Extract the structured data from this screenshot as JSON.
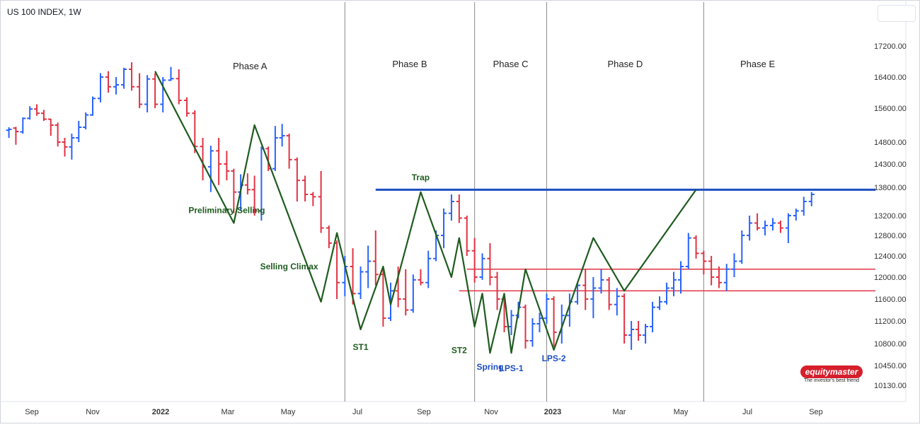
{
  "header": {
    "title": "US 100 INDEX, 1W"
  },
  "logo": {
    "brand": "equitymaster",
    "tagline": "The investor's best friend"
  },
  "colors": {
    "up": "#2962ff",
    "down": "#e03344",
    "wyckoff": "#1e5c1e",
    "trap_line": "#1e4fbf",
    "support_line": "#e03344",
    "phase_divider": "#8a8a8a",
    "label_green": "#1e5c1e",
    "label_blue": "#1e4fbf"
  },
  "chart_data": {
    "type": "ohlc",
    "title": "US 100 INDEX, 1W",
    "y_ticks": [
      17200,
      16400,
      15600,
      14800,
      14300,
      13800,
      13200,
      12800,
      12400,
      12000,
      11600,
      11200,
      10800,
      10450,
      10130
    ],
    "y_tick_labels": [
      "17200.00",
      "16400.00",
      "15600.00",
      "14800.00",
      "14300.00",
      "13800.00",
      "13200.00",
      "12800.00",
      "12400.00",
      "12000.00",
      "11600.00",
      "11200.00",
      "10800.00",
      "10450.00",
      "10130.00"
    ],
    "x_ticks": [
      {
        "label": "Sep",
        "date": "2021-09-01"
      },
      {
        "label": "Nov",
        "date": "2021-11-01"
      },
      {
        "label": "2022",
        "date": "2022-01-01",
        "bold": true
      },
      {
        "label": "Mar",
        "date": "2022-03-01"
      },
      {
        "label": "May",
        "date": "2022-05-01"
      },
      {
        "label": "Jul",
        "date": "2022-07-01"
      },
      {
        "label": "Sep",
        "date": "2022-09-01"
      },
      {
        "label": "Nov",
        "date": "2022-11-01"
      },
      {
        "label": "2023",
        "date": "2023-01-01",
        "bold": true
      },
      {
        "label": "Mar",
        "date": "2023-03-01"
      },
      {
        "label": "May",
        "date": "2023-05-01"
      },
      {
        "label": "Jul",
        "date": "2023-07-01"
      },
      {
        "label": "Sep",
        "date": "2023-09-01"
      }
    ],
    "bars": [
      {
        "date": "2021-08-09",
        "o": 15080,
        "h": 15150,
        "l": 14900,
        "c": 15100
      },
      {
        "date": "2021-08-16",
        "o": 15130,
        "h": 15160,
        "l": 14740,
        "c": 15050
      },
      {
        "date": "2021-08-23",
        "o": 15040,
        "h": 15380,
        "l": 15000,
        "c": 15360
      },
      {
        "date": "2021-08-30",
        "o": 15360,
        "h": 15650,
        "l": 15330,
        "c": 15580
      },
      {
        "date": "2021-09-06",
        "o": 15580,
        "h": 15700,
        "l": 15420,
        "c": 15480
      },
      {
        "date": "2021-09-13",
        "o": 15480,
        "h": 15560,
        "l": 15300,
        "c": 15340
      },
      {
        "date": "2021-09-20",
        "o": 15340,
        "h": 15350,
        "l": 14950,
        "c": 15200
      },
      {
        "date": "2021-09-27",
        "o": 15200,
        "h": 15260,
        "l": 14700,
        "c": 14800
      },
      {
        "date": "2021-10-04",
        "o": 14800,
        "h": 14900,
        "l": 14470,
        "c": 14690
      },
      {
        "date": "2021-10-11",
        "o": 14690,
        "h": 15000,
        "l": 14400,
        "c": 14900
      },
      {
        "date": "2021-10-18",
        "o": 14900,
        "h": 15300,
        "l": 14800,
        "c": 15150
      },
      {
        "date": "2021-10-25",
        "o": 15150,
        "h": 15500,
        "l": 15100,
        "c": 15440
      },
      {
        "date": "2021-11-01",
        "o": 15440,
        "h": 15900,
        "l": 15420,
        "c": 15850
      },
      {
        "date": "2021-11-08",
        "o": 15850,
        "h": 16500,
        "l": 15750,
        "c": 16400
      },
      {
        "date": "2021-11-15",
        "o": 16400,
        "h": 16550,
        "l": 16000,
        "c": 16150
      },
      {
        "date": "2021-11-22",
        "o": 16150,
        "h": 16400,
        "l": 15950,
        "c": 16200
      },
      {
        "date": "2021-11-29",
        "o": 16200,
        "h": 16640,
        "l": 16100,
        "c": 16600
      },
      {
        "date": "2021-12-06",
        "o": 16600,
        "h": 16780,
        "l": 16050,
        "c": 16150
      },
      {
        "date": "2021-12-13",
        "o": 16150,
        "h": 16500,
        "l": 15600,
        "c": 15700
      },
      {
        "date": "2021-12-20",
        "o": 15700,
        "h": 16450,
        "l": 15500,
        "c": 16350
      },
      {
        "date": "2021-12-27",
        "o": 16350,
        "h": 16500,
        "l": 15600,
        "c": 15700
      },
      {
        "date": "2022-01-03",
        "o": 15700,
        "h": 16400,
        "l": 15500,
        "c": 16320
      },
      {
        "date": "2022-01-10",
        "o": 16320,
        "h": 16660,
        "l": 16300,
        "c": 16360
      },
      {
        "date": "2022-01-17",
        "o": 16360,
        "h": 16600,
        "l": 15700,
        "c": 15800
      },
      {
        "date": "2022-01-24",
        "o": 15800,
        "h": 15880,
        "l": 15400,
        "c": 15480
      },
      {
        "date": "2022-01-31",
        "o": 15480,
        "h": 15550,
        "l": 14550,
        "c": 14700
      },
      {
        "date": "2022-02-07",
        "o": 14700,
        "h": 14900,
        "l": 13950,
        "c": 14240
      },
      {
        "date": "2022-02-14",
        "o": 14240,
        "h": 14720,
        "l": 13700,
        "c": 14600
      },
      {
        "date": "2022-02-21",
        "o": 14600,
        "h": 14900,
        "l": 13850,
        "c": 14300
      },
      {
        "date": "2022-02-28",
        "o": 14300,
        "h": 14600,
        "l": 13950,
        "c": 14150
      },
      {
        "date": "2022-03-07",
        "o": 14150,
        "h": 14200,
        "l": 13250,
        "c": 13700
      },
      {
        "date": "2022-03-14",
        "o": 13700,
        "h": 14080,
        "l": 13300,
        "c": 13850
      },
      {
        "date": "2022-03-21",
        "o": 13850,
        "h": 14100,
        "l": 13650,
        "c": 13750
      },
      {
        "date": "2022-03-28",
        "o": 13750,
        "h": 14050,
        "l": 13200,
        "c": 13300
      },
      {
        "date": "2022-04-04",
        "o": 13300,
        "h": 14700,
        "l": 13100,
        "c": 14650
      },
      {
        "date": "2022-04-11",
        "o": 14650,
        "h": 14700,
        "l": 14150,
        "c": 14200
      },
      {
        "date": "2022-04-18",
        "o": 14200,
        "h": 15180,
        "l": 14150,
        "c": 14900
      },
      {
        "date": "2022-04-25",
        "o": 14900,
        "h": 15230,
        "l": 14700,
        "c": 14950
      },
      {
        "date": "2022-05-02",
        "o": 14950,
        "h": 15000,
        "l": 14200,
        "c": 14400
      },
      {
        "date": "2022-05-09",
        "o": 14400,
        "h": 14450,
        "l": 13500,
        "c": 13950
      },
      {
        "date": "2022-05-16",
        "o": 13950,
        "h": 14050,
        "l": 13500,
        "c": 13650
      },
      {
        "date": "2022-05-23",
        "o": 13650,
        "h": 13700,
        "l": 13400,
        "c": 13600
      },
      {
        "date": "2022-05-30",
        "o": 13600,
        "h": 14150,
        "l": 12850,
        "c": 12950
      },
      {
        "date": "2022-06-06",
        "o": 12950,
        "h": 13000,
        "l": 12550,
        "c": 12650
      },
      {
        "date": "2022-06-13",
        "o": 12650,
        "h": 12700,
        "l": 11600,
        "c": 11900
      },
      {
        "date": "2022-06-20",
        "o": 11900,
        "h": 12400,
        "l": 11650,
        "c": 12200
      },
      {
        "date": "2022-06-27",
        "o": 12200,
        "h": 12550,
        "l": 11500,
        "c": 11700
      },
      {
        "date": "2022-07-04",
        "o": 11700,
        "h": 12200,
        "l": 11600,
        "c": 12100
      },
      {
        "date": "2022-07-11",
        "o": 12100,
        "h": 12600,
        "l": 11800,
        "c": 12300
      },
      {
        "date": "2022-07-18",
        "o": 12300,
        "h": 12900,
        "l": 11850,
        "c": 12050
      },
      {
        "date": "2022-07-25",
        "o": 12050,
        "h": 12150,
        "l": 11100,
        "c": 11250
      },
      {
        "date": "2022-08-01",
        "o": 11250,
        "h": 11900,
        "l": 11200,
        "c": 11750
      },
      {
        "date": "2022-08-08",
        "o": 11750,
        "h": 12200,
        "l": 11450,
        "c": 11600
      },
      {
        "date": "2022-08-15",
        "o": 11600,
        "h": 12150,
        "l": 11300,
        "c": 11400
      },
      {
        "date": "2022-08-22",
        "o": 11400,
        "h": 12050,
        "l": 11350,
        "c": 11950
      },
      {
        "date": "2022-08-29",
        "o": 11950,
        "h": 12150,
        "l": 11850,
        "c": 11900
      },
      {
        "date": "2022-09-05",
        "o": 11900,
        "h": 12500,
        "l": 11800,
        "c": 12350
      },
      {
        "date": "2022-09-12",
        "o": 12350,
        "h": 12900,
        "l": 12300,
        "c": 12800
      },
      {
        "date": "2022-09-19",
        "o": 12800,
        "h": 13350,
        "l": 12550,
        "c": 13250
      },
      {
        "date": "2022-09-26",
        "o": 13250,
        "h": 13650,
        "l": 13100,
        "c": 13500
      },
      {
        "date": "2022-10-03",
        "o": 13500,
        "h": 13650,
        "l": 13050,
        "c": 13150
      },
      {
        "date": "2022-10-10",
        "o": 13150,
        "h": 13200,
        "l": 12400,
        "c": 12500
      },
      {
        "date": "2022-10-17",
        "o": 12500,
        "h": 12750,
        "l": 11900,
        "c": 12000
      },
      {
        "date": "2022-10-24",
        "o": 12000,
        "h": 12450,
        "l": 11950,
        "c": 12350
      },
      {
        "date": "2022-10-31",
        "o": 12350,
        "h": 12650,
        "l": 11850,
        "c": 12000
      },
      {
        "date": "2022-11-07",
        "o": 12000,
        "h": 12100,
        "l": 11400,
        "c": 11600
      },
      {
        "date": "2022-11-14",
        "o": 11600,
        "h": 11650,
        "l": 11000,
        "c": 11100
      },
      {
        "date": "2022-11-21",
        "o": 11100,
        "h": 11400,
        "l": 10950,
        "c": 11300
      },
      {
        "date": "2022-11-28",
        "o": 11300,
        "h": 11550,
        "l": 11250,
        "c": 11450
      },
      {
        "date": "2022-12-05",
        "o": 11450,
        "h": 11500,
        "l": 10720,
        "c": 10850
      },
      {
        "date": "2022-12-12",
        "o": 10850,
        "h": 11250,
        "l": 10750,
        "c": 11150
      },
      {
        "date": "2022-12-19",
        "o": 11150,
        "h": 11350,
        "l": 11000,
        "c": 11250
      },
      {
        "date": "2022-12-26",
        "o": 11250,
        "h": 11700,
        "l": 11150,
        "c": 11600
      },
      {
        "date": "2023-01-02",
        "o": 11600,
        "h": 11650,
        "l": 10750,
        "c": 11000
      },
      {
        "date": "2023-01-09",
        "o": 11000,
        "h": 11500,
        "l": 10800,
        "c": 11300
      },
      {
        "date": "2023-01-16",
        "o": 11300,
        "h": 11700,
        "l": 11100,
        "c": 11550
      },
      {
        "date": "2023-01-23",
        "o": 11550,
        "h": 11900,
        "l": 11500,
        "c": 11850
      },
      {
        "date": "2023-01-30",
        "o": 11850,
        "h": 12150,
        "l": 11400,
        "c": 11600
      },
      {
        "date": "2023-02-06",
        "o": 11600,
        "h": 12000,
        "l": 11250,
        "c": 11800
      },
      {
        "date": "2023-02-13",
        "o": 11800,
        "h": 12150,
        "l": 11700,
        "c": 11950
      },
      {
        "date": "2023-02-20",
        "o": 11950,
        "h": 12000,
        "l": 11400,
        "c": 11500
      },
      {
        "date": "2023-02-27",
        "o": 11500,
        "h": 11800,
        "l": 11300,
        "c": 11650
      },
      {
        "date": "2023-03-06",
        "o": 11650,
        "h": 11700,
        "l": 10800,
        "c": 10950
      },
      {
        "date": "2023-03-13",
        "o": 10950,
        "h": 11200,
        "l": 10700,
        "c": 11050
      },
      {
        "date": "2023-03-20",
        "o": 11050,
        "h": 11200,
        "l": 10850,
        "c": 10950
      },
      {
        "date": "2023-03-27",
        "o": 10950,
        "h": 11150,
        "l": 10800,
        "c": 11100
      },
      {
        "date": "2023-04-03",
        "o": 11100,
        "h": 11550,
        "l": 11000,
        "c": 11450
      },
      {
        "date": "2023-04-10",
        "o": 11450,
        "h": 11650,
        "l": 11400,
        "c": 11550
      },
      {
        "date": "2023-04-17",
        "o": 11550,
        "h": 11900,
        "l": 11500,
        "c": 11800
      },
      {
        "date": "2023-04-24",
        "o": 11800,
        "h": 12100,
        "l": 11650,
        "c": 11950
      },
      {
        "date": "2023-05-01",
        "o": 11950,
        "h": 12300,
        "l": 11700,
        "c": 12200
      },
      {
        "date": "2023-05-08",
        "o": 12200,
        "h": 12850,
        "l": 12150,
        "c": 12750
      },
      {
        "date": "2023-05-15",
        "o": 12750,
        "h": 12800,
        "l": 12350,
        "c": 12450
      },
      {
        "date": "2023-05-22",
        "o": 12450,
        "h": 12500,
        "l": 12050,
        "c": 12300
      },
      {
        "date": "2023-05-29",
        "o": 12300,
        "h": 12400,
        "l": 11850,
        "c": 12000
      },
      {
        "date": "2023-06-05",
        "o": 12000,
        "h": 12200,
        "l": 11800,
        "c": 11900
      },
      {
        "date": "2023-06-12",
        "o": 11900,
        "h": 12250,
        "l": 11750,
        "c": 12150
      },
      {
        "date": "2023-06-19",
        "o": 12150,
        "h": 12450,
        "l": 12000,
        "c": 12300
      },
      {
        "date": "2023-06-26",
        "o": 12300,
        "h": 12900,
        "l": 12250,
        "c": 12800
      },
      {
        "date": "2023-07-03",
        "o": 12800,
        "h": 13200,
        "l": 12700,
        "c": 13050
      },
      {
        "date": "2023-07-10",
        "o": 13050,
        "h": 13250,
        "l": 12900,
        "c": 12950
      },
      {
        "date": "2023-07-17",
        "o": 12950,
        "h": 13100,
        "l": 12800,
        "c": 13000
      },
      {
        "date": "2023-07-24",
        "o": 13000,
        "h": 13150,
        "l": 12900,
        "c": 13050
      },
      {
        "date": "2023-07-31",
        "o": 13050,
        "h": 13100,
        "l": 12850,
        "c": 12950
      },
      {
        "date": "2023-08-07",
        "o": 12950,
        "h": 13250,
        "l": 12650,
        "c": 13200
      },
      {
        "date": "2023-08-14",
        "o": 13200,
        "h": 13350,
        "l": 13100,
        "c": 13300
      },
      {
        "date": "2023-08-21",
        "o": 13300,
        "h": 13600,
        "l": 13200,
        "c": 13500
      },
      {
        "date": "2023-08-28",
        "o": 13500,
        "h": 13700,
        "l": 13400,
        "c": 13650
      }
    ],
    "phases": [
      {
        "label": "Phase A",
        "start": "2021-12-27",
        "end": "2022-06-20"
      },
      {
        "label": "Phase B",
        "start": "2022-06-20",
        "end": "2022-10-17"
      },
      {
        "label": "Phase C",
        "start": "2022-10-17",
        "end": "2022-12-26"
      },
      {
        "label": "Phase D",
        "start": "2022-12-26",
        "end": "2023-05-22"
      },
      {
        "label": "Phase E",
        "start": "2023-05-22",
        "end": "2023-08-28"
      }
    ],
    "phase_dividers": [
      "2022-06-20",
      "2022-10-17",
      "2022-12-26",
      "2023-05-22"
    ],
    "zigzag": [
      {
        "date": "2021-12-27",
        "value": 16550
      },
      {
        "date": "2022-03-07",
        "value": 13050
      },
      {
        "date": "2022-03-28",
        "value": 15200
      },
      {
        "date": "2022-05-30",
        "value": 11550
      },
      {
        "date": "2022-06-13",
        "value": 12850
      },
      {
        "date": "2022-07-04",
        "value": 11050
      },
      {
        "date": "2022-07-25",
        "value": 12200
      },
      {
        "date": "2022-08-01",
        "value": 11500
      },
      {
        "date": "2022-08-29",
        "value": 13700
      },
      {
        "date": "2022-09-26",
        "value": 12000
      },
      {
        "date": "2022-10-03",
        "value": 12750
      },
      {
        "date": "2022-10-17",
        "value": 11100
      },
      {
        "date": "2022-10-24",
        "value": 11700
      },
      {
        "date": "2022-10-31",
        "value": 10650
      },
      {
        "date": "2022-11-14",
        "value": 11700
      },
      {
        "date": "2022-11-21",
        "value": 10650
      },
      {
        "date": "2022-12-05",
        "value": 12150
      },
      {
        "date": "2023-01-02",
        "value": 10700
      },
      {
        "date": "2023-02-06",
        "value": 12750
      },
      {
        "date": "2023-03-06",
        "value": 11750
      },
      {
        "date": "2023-05-15",
        "value": 13750
      }
    ],
    "hlines": [
      {
        "name": "trap",
        "value": 13750,
        "start": "2022-07-18",
        "color": "#1e4fbf",
        "width": 3
      },
      {
        "name": "resistance",
        "value": 12150,
        "start": "2022-10-10",
        "color": "#e03344",
        "width": 1.5
      },
      {
        "name": "support",
        "value": 11750,
        "start": "2022-10-03",
        "color": "#e03344",
        "width": 1.5
      }
    ],
    "annotations": [
      {
        "text": "Preliminary Selling",
        "date": "2022-02-28",
        "value": 13250,
        "color": "#1e5c1e"
      },
      {
        "text": "Selling Climax",
        "date": "2022-05-02",
        "value": 12150,
        "color": "#1e5c1e"
      },
      {
        "text": "ST1",
        "date": "2022-07-04",
        "value": 10700,
        "color": "#1e5c1e"
      },
      {
        "text": "Trap",
        "date": "2022-08-29",
        "value": 13950,
        "color": "#1e5c1e"
      },
      {
        "text": "ST2",
        "date": "2022-10-03",
        "value": 10650,
        "color": "#1e5c1e"
      },
      {
        "text": "Spring",
        "date": "2022-10-31",
        "value": 10380,
        "color": "#1e4fbf"
      },
      {
        "text": "LPS-1",
        "date": "2022-11-21",
        "value": 10360,
        "color": "#1e4fbf"
      },
      {
        "text": "LPS-2",
        "date": "2023-01-02",
        "value": 10520,
        "color": "#1e4fbf"
      }
    ],
    "grid": false
  }
}
